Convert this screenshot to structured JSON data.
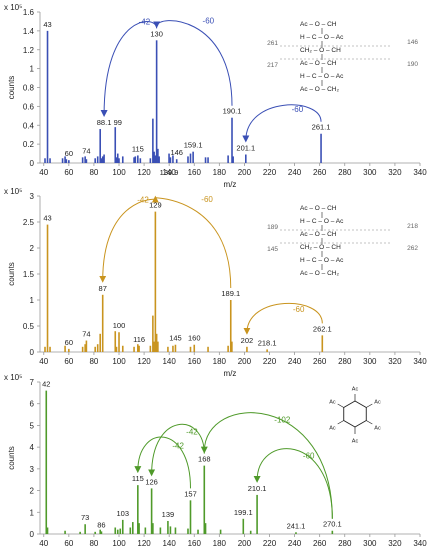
{
  "chart_data": [
    {
      "type": "bar",
      "color": "#3a4fb5",
      "scale_label": "x 10⁵",
      "ylabel": "counts",
      "xlabel": "m/z",
      "xlim": [
        37,
        340
      ],
      "ylim": [
        0,
        1.6
      ],
      "xticks": [
        40,
        60,
        80,
        100,
        120,
        140,
        160,
        180,
        200,
        220,
        240,
        260,
        280,
        300,
        320,
        340
      ],
      "yticks": [
        0,
        0.2,
        0.4,
        0.6,
        0.8,
        1,
        1.2,
        1.4,
        1.6
      ],
      "ytick_labels": [
        "0",
        "0.2",
        "0.4",
        "0.6",
        "0.8",
        "1",
        "1.2",
        "1.4",
        "1.6"
      ],
      "peaks": [
        [
          41,
          0.05
        ],
        [
          43,
          1.4
        ],
        [
          45,
          0.05
        ],
        [
          55,
          0.05
        ],
        [
          57,
          0.07
        ],
        [
          58,
          0.04
        ],
        [
          60,
          0.03
        ],
        [
          71,
          0.06
        ],
        [
          73,
          0.07
        ],
        [
          74,
          0.04
        ],
        [
          81,
          0.05
        ],
        [
          83,
          0.07
        ],
        [
          85,
          0.36
        ],
        [
          86,
          0.05
        ],
        [
          87,
          0.07
        ],
        [
          88.1,
          0.09
        ],
        [
          97,
          0.38
        ],
        [
          98,
          0.06
        ],
        [
          99,
          0.1
        ],
        [
          100,
          0.05
        ],
        [
          103,
          0.07
        ],
        [
          112,
          0.06
        ],
        [
          113,
          0.07
        ],
        [
          115,
          0.08
        ],
        [
          117,
          0.05
        ],
        [
          125,
          0.05
        ],
        [
          127,
          0.47
        ],
        [
          128,
          0.12
        ],
        [
          129,
          0.08
        ],
        [
          130,
          1.3
        ],
        [
          131,
          0.15
        ],
        [
          132,
          0.07
        ],
        [
          139.9,
          0.1
        ],
        [
          141,
          0.06
        ],
        [
          143,
          0.08
        ],
        [
          146,
          0.04
        ],
        [
          155,
          0.07
        ],
        [
          157,
          0.1
        ],
        [
          159.1,
          0.12
        ],
        [
          169,
          0.06
        ],
        [
          171,
          0.06
        ],
        [
          187,
          0.08
        ],
        [
          190.1,
          0.48
        ],
        [
          191,
          0.07
        ],
        [
          201.1,
          0.09
        ],
        [
          261.1,
          0.31
        ]
      ],
      "annotations": [
        {
          "x": 43,
          "y": 1.4,
          "label": "43"
        },
        {
          "x": 130,
          "y": 1.3,
          "label": "130"
        },
        {
          "x": 190.1,
          "y": 0.48,
          "label": "190.1"
        },
        {
          "x": 261.1,
          "y": 0.31,
          "label": "261.1"
        },
        {
          "x": 88.1,
          "y": 0.36,
          "label": "88.1"
        },
        {
          "x": 99,
          "y": 0.36,
          "label": "99"
        },
        {
          "x": 60,
          "y": 0.03,
          "label": "60"
        },
        {
          "x": 74,
          "y": 0.06,
          "label": "74"
        },
        {
          "x": 115,
          "y": 0.08,
          "label": "115"
        },
        {
          "x": 146,
          "y": 0.04,
          "label": "146"
        },
        {
          "x": 159.1,
          "y": 0.12,
          "label": "159.1"
        },
        {
          "x": 201.1,
          "y": 0.09,
          "label": "201.1"
        },
        {
          "x": 139.9,
          "y": 0.0,
          "label": "139.9"
        }
      ],
      "transitions": [
        {
          "from": 130,
          "to": 88.1,
          "label": "-42"
        },
        {
          "from": 190.1,
          "to": 130,
          "label": "-60"
        },
        {
          "from": 261.1,
          "to": 201.1,
          "label": "-60"
        }
      ],
      "structure": {
        "lines": [
          "Ac – O – CH",
          "H – C – O – Ac",
          "CH₂ – O – CH",
          "Ac – O – CH",
          "H – C – O – Ac",
          "Ac – O – CH₂"
        ],
        "frag_left": [
          "261",
          "217"
        ],
        "frag_right": [
          "146",
          "190"
        ]
      }
    },
    {
      "type": "bar",
      "color": "#c9941e",
      "scale_label": "x 10⁵",
      "ylabel": "counts",
      "xlabel": "m/z",
      "xlim": [
        37,
        340
      ],
      "ylim": [
        0,
        3
      ],
      "xticks": [
        40,
        60,
        80,
        100,
        120,
        140,
        160,
        180,
        200,
        220,
        240,
        260,
        280,
        300,
        320,
        340
      ],
      "yticks": [
        0,
        0.5,
        1,
        1.5,
        2,
        2.5,
        3
      ],
      "ytick_labels": [
        "0",
        "0.5",
        "1",
        "1.5",
        "2",
        "2.5",
        "3"
      ],
      "peaks": [
        [
          41,
          0.1
        ],
        [
          43,
          2.45
        ],
        [
          45,
          0.1
        ],
        [
          57,
          0.12
        ],
        [
          60,
          0.06
        ],
        [
          71,
          0.1
        ],
        [
          73,
          0.15
        ],
        [
          74,
          0.22
        ],
        [
          81,
          0.1
        ],
        [
          83,
          0.15
        ],
        [
          85,
          0.35
        ],
        [
          87,
          1.1
        ],
        [
          97,
          0.4
        ],
        [
          98,
          0.1
        ],
        [
          100,
          0.38
        ],
        [
          103,
          0.12
        ],
        [
          112,
          0.1
        ],
        [
          115,
          0.15
        ],
        [
          116,
          0.12
        ],
        [
          125,
          0.12
        ],
        [
          127,
          0.7
        ],
        [
          128,
          0.2
        ],
        [
          129,
          2.7
        ],
        [
          130,
          0.35
        ],
        [
          131,
          0.2
        ],
        [
          139,
          0.1
        ],
        [
          143,
          0.12
        ],
        [
          145,
          0.14
        ],
        [
          157,
          0.1
        ],
        [
          160,
          0.14
        ],
        [
          171,
          0.1
        ],
        [
          187,
          0.12
        ],
        [
          189.1,
          1.0
        ],
        [
          190,
          0.2
        ],
        [
          202,
          0.1
        ],
        [
          218.1,
          0.05
        ],
        [
          262.1,
          0.32
        ]
      ],
      "annotations": [
        {
          "x": 43,
          "y": 2.45,
          "label": "43"
        },
        {
          "x": 129,
          "y": 2.7,
          "label": "129"
        },
        {
          "x": 87,
          "y": 1.1,
          "label": "87"
        },
        {
          "x": 189.1,
          "y": 1.0,
          "label": "189.1"
        },
        {
          "x": 262.1,
          "y": 0.32,
          "label": "262.1"
        },
        {
          "x": 60,
          "y": 0.06,
          "label": "60"
        },
        {
          "x": 74,
          "y": 0.22,
          "label": "74"
        },
        {
          "x": 100,
          "y": 0.38,
          "label": "100"
        },
        {
          "x": 116,
          "y": 0.12,
          "label": "116"
        },
        {
          "x": 145,
          "y": 0.14,
          "label": "145"
        },
        {
          "x": 160,
          "y": 0.14,
          "label": "160"
        },
        {
          "x": 202,
          "y": 0.1,
          "label": "202"
        },
        {
          "x": 218.1,
          "y": 0.05,
          "label": "218.1"
        }
      ],
      "transitions": [
        {
          "from": 129,
          "to": 87,
          "label": "-42"
        },
        {
          "from": 189.1,
          "to": 129,
          "label": "-60"
        },
        {
          "from": 262.1,
          "to": 202,
          "label": "-60"
        }
      ],
      "structure": {
        "lines": [
          "Ac – O – CH",
          "H – C – O – Ac",
          "Ac – O – CH",
          "CH₂ – O – CH",
          "H – C – O – Ac",
          "Ac – O – CH₂"
        ],
        "frag_left": [
          "189",
          "145"
        ],
        "frag_right": [
          "218",
          "262"
        ]
      }
    },
    {
      "type": "bar",
      "color": "#4f9a2a",
      "scale_label": "x 10⁵",
      "ylabel": "counts",
      "xlabel": "",
      "xlim": [
        37,
        340
      ],
      "ylim": [
        0,
        7
      ],
      "xticks": [
        40,
        60,
        80,
        100,
        120,
        140,
        160,
        180,
        200,
        220,
        240,
        260,
        280,
        300,
        320,
        340
      ],
      "yticks": [
        0,
        1,
        2,
        3,
        4,
        5,
        6,
        7
      ],
      "ytick_labels": [
        "0",
        "1",
        "2",
        "3",
        "4",
        "5",
        "6",
        "7"
      ],
      "peaks": [
        [
          42,
          6.6
        ],
        [
          43,
          0.3
        ],
        [
          57,
          0.15
        ],
        [
          69,
          0.1
        ],
        [
          73,
          0.45
        ],
        [
          81,
          0.1
        ],
        [
          85,
          0.2
        ],
        [
          86,
          0.12
        ],
        [
          97,
          0.3
        ],
        [
          99,
          0.2
        ],
        [
          101,
          0.25
        ],
        [
          103,
          0.65
        ],
        [
          109,
          0.3
        ],
        [
          111,
          0.55
        ],
        [
          115,
          2.25
        ],
        [
          116,
          0.5
        ],
        [
          121,
          0.3
        ],
        [
          126,
          2.1
        ],
        [
          127,
          0.5
        ],
        [
          133,
          0.3
        ],
        [
          139,
          0.6
        ],
        [
          141,
          0.35
        ],
        [
          145,
          0.3
        ],
        [
          155,
          0.25
        ],
        [
          157,
          1.55
        ],
        [
          163,
          0.2
        ],
        [
          168,
          3.15
        ],
        [
          169,
          0.5
        ],
        [
          181,
          0.2
        ],
        [
          199.1,
          0.7
        ],
        [
          205,
          0.15
        ],
        [
          210.1,
          1.8
        ],
        [
          241.1,
          0.08
        ],
        [
          270.1,
          0.15
        ]
      ],
      "annotations": [
        {
          "x": 42,
          "y": 6.6,
          "label": "42"
        },
        {
          "x": 168,
          "y": 3.15,
          "label": "168"
        },
        {
          "x": 115,
          "y": 2.25,
          "label": "115"
        },
        {
          "x": 126,
          "y": 2.1,
          "label": "126"
        },
        {
          "x": 157,
          "y": 1.55,
          "label": "157"
        },
        {
          "x": 210.1,
          "y": 1.8,
          "label": "210.1"
        },
        {
          "x": 199.1,
          "y": 0.7,
          "label": "199.1"
        },
        {
          "x": 103,
          "y": 0.65,
          "label": "103"
        },
        {
          "x": 139,
          "y": 0.6,
          "label": "139"
        },
        {
          "x": 73,
          "y": 0.45,
          "label": "73"
        },
        {
          "x": 86,
          "y": 0.12,
          "label": "86"
        },
        {
          "x": 241.1,
          "y": 0.08,
          "label": "241.1"
        },
        {
          "x": 270.1,
          "y": 0.15,
          "label": "270.1"
        }
      ],
      "transitions": [
        {
          "from": 168,
          "to": 126,
          "label": "-42"
        },
        {
          "from": 157,
          "to": 115,
          "label": "-42"
        },
        {
          "from": 270.1,
          "to": 168,
          "label": "-102"
        },
        {
          "from": 270.1,
          "to": 210.1,
          "label": "-60"
        }
      ],
      "ring_label": "Ac"
    }
  ]
}
